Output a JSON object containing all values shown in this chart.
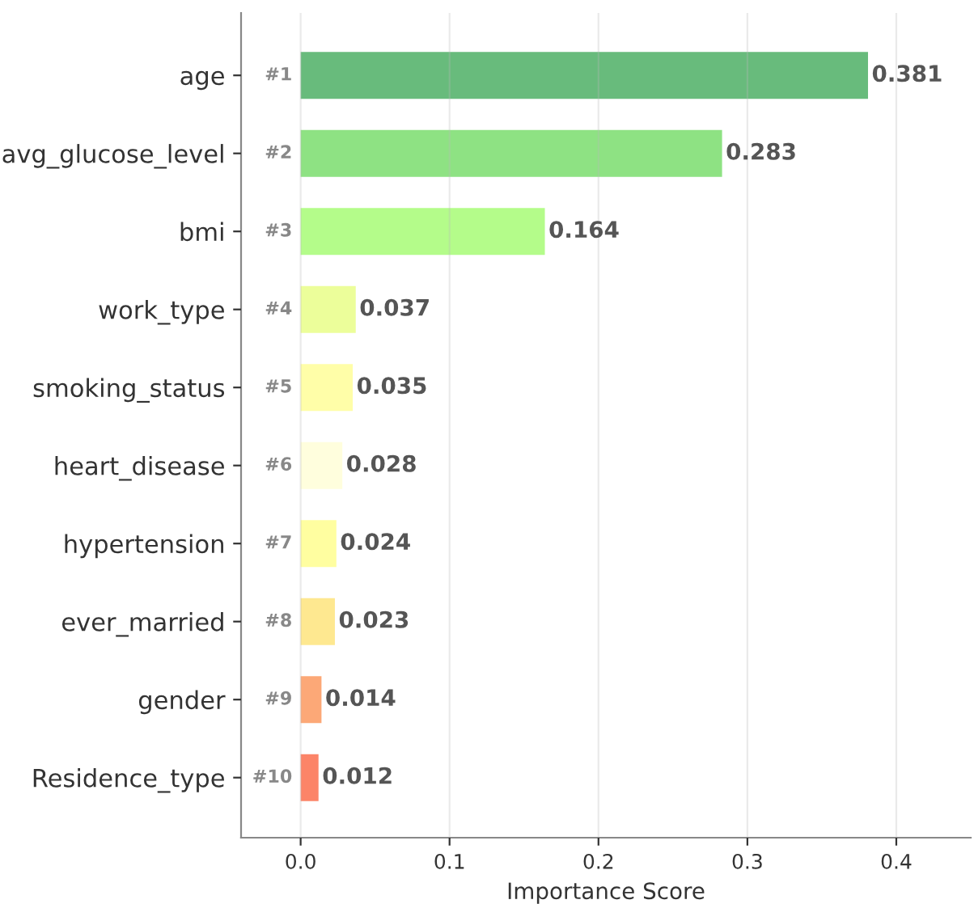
{
  "chart_data": {
    "type": "bar",
    "orientation": "horizontal",
    "xlabel": "Importance Score",
    "categories": [
      "age",
      "avg_glucose_level",
      "bmi",
      "work_type",
      "smoking_status",
      "heart_disease",
      "hypertension",
      "ever_married",
      "gender",
      "Residence_type"
    ],
    "values": [
      0.381,
      0.283,
      0.164,
      0.037,
      0.035,
      0.028,
      0.024,
      0.023,
      0.014,
      0.012
    ],
    "colors": [
      "#68bb7c",
      "#8ee283",
      "#b4fc8a",
      "#ecfe9a",
      "#fffea8",
      "#fffedd",
      "#fffea0",
      "#fee890",
      "#fca877",
      "#fc8468"
    ],
    "data_labels": true,
    "xlim": [
      -0.04,
      0.45
    ],
    "xticks": [
      {
        "value": 0,
        "label": "0.0"
      },
      0.1,
      0.2,
      0.3,
      0.4
    ],
    "grid": "x",
    "annotations": [
      "#1",
      "#2",
      "#3",
      "#4",
      "#5",
      "#6",
      "#7",
      "#8",
      "#9",
      "#10"
    ]
  }
}
